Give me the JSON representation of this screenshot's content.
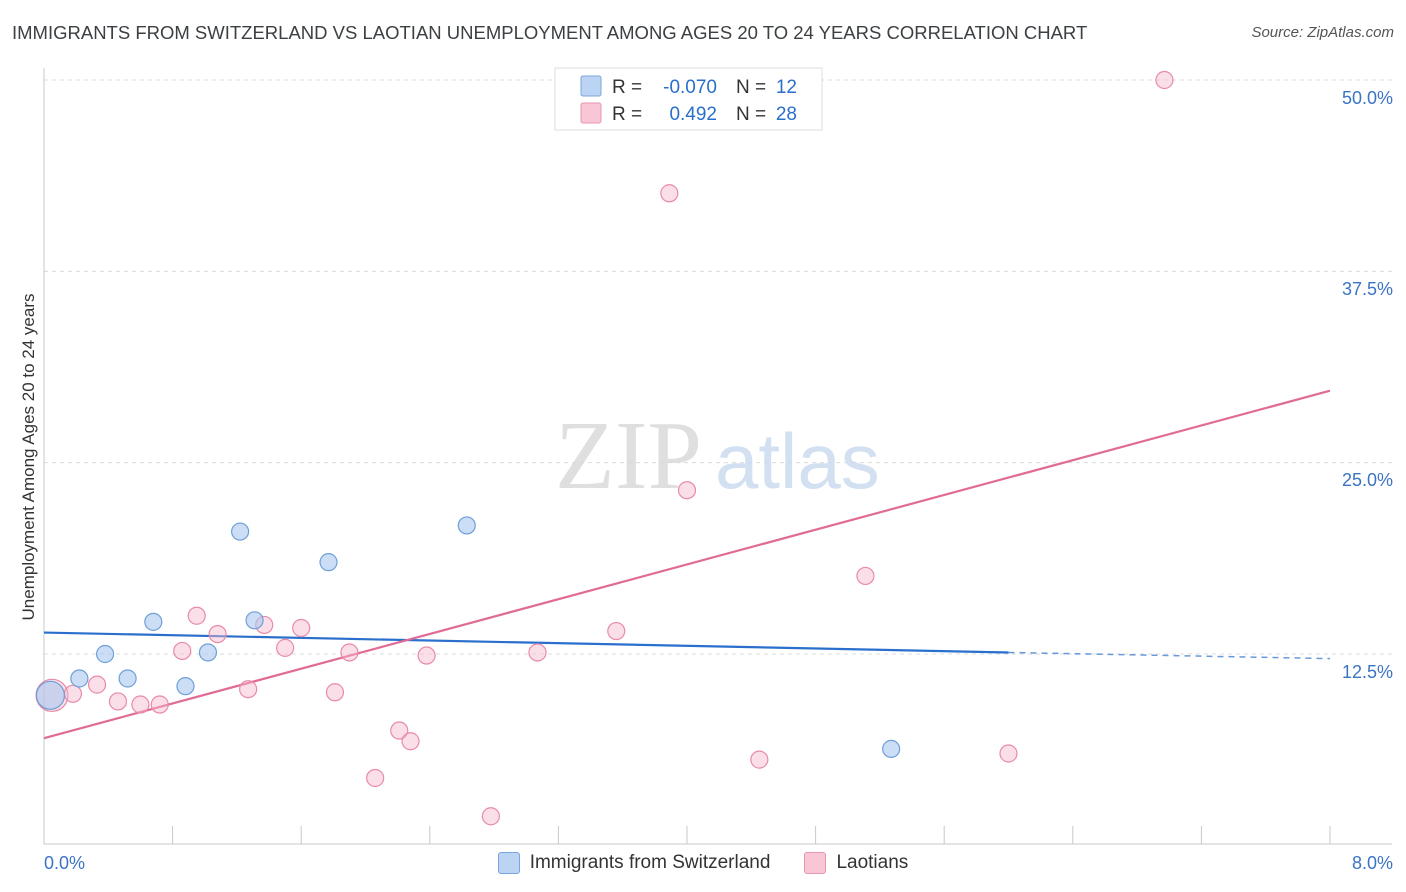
{
  "title": "IMMIGRANTS FROM SWITZERLAND VS LAOTIAN UNEMPLOYMENT AMONG AGES 20 TO 24 YEARS CORRELATION CHART",
  "source": "Source: ZipAtlas.com",
  "watermark": {
    "zip": "ZIP",
    "atlas": "atlas"
  },
  "colors": {
    "blue_fill": "#a8c8f0",
    "blue_stroke": "#6f9fd8",
    "blue_line": "#2a6fcc",
    "pink_fill": "#f7b8cc",
    "pink_stroke": "#e88aa8",
    "pink_line": "#e06b95",
    "axis_label": "#3b74c4",
    "grid": "#dddddd"
  },
  "stats": [
    {
      "series": "Immigrants from Switzerland",
      "r_label": "R =",
      "r_value": "-0.070",
      "n_label": "N =",
      "n_value": "12"
    },
    {
      "series": "Laotians",
      "r_label": "R =",
      "r_value": "0.492",
      "n_label": "N =",
      "n_value": "28"
    }
  ],
  "chart_data": {
    "type": "scatter",
    "title": "IMMIGRANTS FROM SWITZERLAND VS LAOTIAN UNEMPLOYMENT AMONG AGES 20 TO 24 YEARS CORRELATION CHART",
    "xlabel": "",
    "ylabel": "Unemployment Among Ages 20 to 24 years",
    "xlim": [
      0,
      8
    ],
    "ylim": [
      0,
      51
    ],
    "x_tick_labels": [
      "0.0%",
      "8.0%"
    ],
    "y_ticks": [
      12.5,
      25.0,
      37.5,
      50.0
    ],
    "y_tick_labels": [
      "12.5%",
      "25.0%",
      "37.5%",
      "50.0%"
    ],
    "grid": true,
    "series": [
      {
        "name": "Immigrants from Switzerland",
        "points": [
          [
            0.04,
            9.8
          ],
          [
            0.22,
            10.9
          ],
          [
            0.38,
            12.5
          ],
          [
            0.52,
            10.9
          ],
          [
            0.68,
            14.6
          ],
          [
            0.88,
            10.4
          ],
          [
            1.02,
            12.6
          ],
          [
            1.22,
            20.5
          ],
          [
            1.31,
            14.7
          ],
          [
            1.77,
            18.5
          ],
          [
            2.63,
            20.9
          ],
          [
            5.27,
            6.3
          ]
        ],
        "trend": {
          "x": [
            0.0,
            6.0
          ],
          "y": [
            13.9,
            12.6
          ],
          "dashed_to": [
            8.0,
            12.2
          ]
        }
      },
      {
        "name": "Laotians",
        "points": [
          [
            0.05,
            9.8
          ],
          [
            0.18,
            9.9
          ],
          [
            0.33,
            10.5
          ],
          [
            0.46,
            9.4
          ],
          [
            0.6,
            9.2
          ],
          [
            0.72,
            9.2
          ],
          [
            0.86,
            12.7
          ],
          [
            0.95,
            15.0
          ],
          [
            1.08,
            13.8
          ],
          [
            1.27,
            10.2
          ],
          [
            1.37,
            14.4
          ],
          [
            1.5,
            12.9
          ],
          [
            1.6,
            14.2
          ],
          [
            1.81,
            10.0
          ],
          [
            1.9,
            12.6
          ],
          [
            2.06,
            4.4
          ],
          [
            2.21,
            7.5
          ],
          [
            2.28,
            6.8
          ],
          [
            2.38,
            12.4
          ],
          [
            2.78,
            1.9
          ],
          [
            3.07,
            12.6
          ],
          [
            3.56,
            14.0
          ],
          [
            3.89,
            42.6
          ],
          [
            4.0,
            23.2
          ],
          [
            4.45,
            5.6
          ],
          [
            5.11,
            17.6
          ],
          [
            6.0,
            6.0
          ],
          [
            6.97,
            50.0
          ]
        ],
        "trend": {
          "x": [
            0.0,
            8.0
          ],
          "y": [
            7.0,
            29.7
          ]
        }
      }
    ],
    "legend": [
      "Immigrants from Switzerland",
      "Laotians"
    ],
    "legend_position": "bottom-center"
  }
}
